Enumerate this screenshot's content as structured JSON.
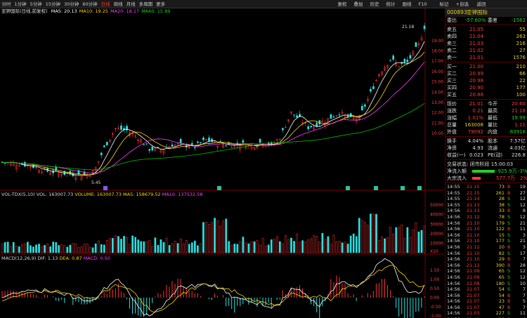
{
  "toolbar": {
    "left": [
      "分时",
      "1分钟",
      "5分钟",
      "15分钟",
      "30分钟",
      "60分钟",
      "日线",
      "周线",
      "月线",
      "多周期",
      "更多"
    ],
    "active_index": 6,
    "right": [
      "复权",
      "叠加",
      "历史",
      "统计",
      "画线",
      "F10",
      "标记",
      "+自选",
      "返回"
    ]
  },
  "main_chart": {
    "stock": "亚钾国际(日线,前复权)",
    "ma": [
      {
        "label": "MA5: 20.13",
        "color": "#ffffff"
      },
      {
        "label": "MA10: 19.25",
        "color": "#ffd700"
      },
      {
        "label": "MA20: 18.17",
        "color": "#ff40ff"
      },
      {
        "label": "MA60: 15.89",
        "color": "#00e000"
      }
    ],
    "price_ticks": [
      "19.00",
      "18.00",
      "17.00",
      "16.00",
      "15.00",
      "14.00",
      "13.00",
      "12.00",
      "11.00",
      "10.00"
    ],
    "high_label": "21.18",
    "low_label": "5.45",
    "event_markers": [
      "◆",
      "◆",
      "◆",
      "◆",
      "◆",
      "◆",
      "◆"
    ]
  },
  "vol_chart": {
    "title": "VOL-TDX(5,10)",
    "vol": "VOL: 163007.73",
    "volume": "VOLUME: 163007.73",
    "ma5": "MA5: 158679.52",
    "ma10": "MA10: 137532.58",
    "ticks": [
      "50000",
      "40000",
      "30000",
      "20000",
      "10000",
      "X10"
    ]
  },
  "macd_chart": {
    "title": "MACD(12,26,9)",
    "dif": "DIF: 1.13",
    "dea": "DEA: 0.87",
    "macd": "MACD: 0.50",
    "ticks": [
      "1.50",
      "1.00",
      "0.50",
      "0.00",
      "-0.50",
      "-1.00"
    ]
  },
  "quote": {
    "code": "000893",
    "name": "亚钾国际",
    "webi_label": "委比",
    "webi": "-57.60%",
    "weicha_label": "委差",
    "weicha": "-1562",
    "asks": [
      {
        "label": "卖五",
        "price": "21.05",
        "vol": "55"
      },
      {
        "label": "卖四",
        "price": "21.04",
        "vol": "263"
      },
      {
        "label": "卖三",
        "price": "21.03",
        "vol": "216"
      },
      {
        "label": "卖二",
        "price": "21.02",
        "vol": "27"
      },
      {
        "label": "卖一",
        "price": "21.01",
        "vol": "1576"
      }
    ],
    "bids": [
      {
        "label": "买一",
        "price": "21.00",
        "vol": "210"
      },
      {
        "label": "买二",
        "price": "20.99",
        "vol": "66"
      },
      {
        "label": "买三",
        "price": "20.98",
        "vol": "22"
      },
      {
        "label": "买四",
        "price": "20.90",
        "vol": "177"
      },
      {
        "label": "买五",
        "price": "20.88",
        "vol": "100"
      }
    ],
    "stats": [
      [
        {
          "t": "现价",
          "c": "wht"
        },
        {
          "t": "21.01",
          "c": "red"
        },
        {
          "t": "今开",
          "c": "wht"
        },
        {
          "t": "20.60",
          "c": "red"
        }
      ],
      [
        {
          "t": "涨跌",
          "c": "wht"
        },
        {
          "t": "0.21",
          "c": "red"
        },
        {
          "t": "最高",
          "c": "wht"
        },
        {
          "t": "21.18",
          "c": "red"
        }
      ],
      [
        {
          "t": "涨幅",
          "c": "wht"
        },
        {
          "t": "1.01%",
          "c": "red"
        },
        {
          "t": "最低",
          "c": "wht"
        },
        {
          "t": "19.99",
          "c": "grn"
        }
      ],
      [
        {
          "t": "总量",
          "c": "wht"
        },
        {
          "t": "163008",
          "c": "yel"
        },
        {
          "t": "量比",
          "c": "wht"
        },
        {
          "t": "1.11",
          "c": "red"
        }
      ],
      [
        {
          "t": "外盘",
          "c": "wht"
        },
        {
          "t": "79092",
          "c": "red"
        },
        {
          "t": "内盘",
          "c": "wht"
        },
        {
          "t": "83916",
          "c": "grn"
        }
      ]
    ],
    "stats2": [
      [
        {
          "t": "换手",
          "c": "wht"
        },
        {
          "t": "4.04%",
          "c": "wht"
        },
        {
          "t": "股本",
          "c": "wht"
        },
        {
          "t": "7.57亿",
          "c": "wht"
        }
      ],
      [
        {
          "t": "净资",
          "c": "wht"
        },
        {
          "t": "4.93",
          "c": "wht"
        },
        {
          "t": "流通",
          "c": "wht"
        },
        {
          "t": "4.03亿",
          "c": "wht"
        }
      ],
      [
        {
          "t": "收益(一)",
          "c": "wht"
        },
        {
          "t": "0.023",
          "c": "wht"
        },
        {
          "t": "PE(动)",
          "c": "wht"
        },
        {
          "t": "226.8",
          "c": "wht"
        }
      ]
    ],
    "trade_status": "交易状态: 闭市阶段 15:00:03",
    "netflow": {
      "label": "净流入额",
      "value": "-925.9万",
      "pct": "-3%"
    },
    "bigflow": {
      "label": "大宗流入",
      "value": "577.7万",
      "pct": "2%"
    }
  },
  "ticks_list": [
    {
      "t": "14:55",
      "p": "21.15",
      "v": "73",
      "d": "B",
      "n": "19"
    },
    {
      "t": "14:55",
      "p": "21.15",
      "v": "261",
      "d": "B",
      "n": "27"
    },
    {
      "t": "14:55",
      "p": "21.14",
      "v": "28",
      "d": "S",
      "n": "12"
    },
    {
      "t": "14:55",
      "p": "21.13",
      "v": "38",
      "d": "S",
      "n": "12"
    },
    {
      "t": "14:56",
      "p": "21.13",
      "v": "33",
      "d": "B",
      "n": "8"
    },
    {
      "t": "14:56",
      "p": "21.12",
      "v": "78",
      "d": "S",
      "n": "12"
    },
    {
      "t": "14:56",
      "p": "21.10",
      "v": "179",
      "d": "S",
      "n": "21"
    },
    {
      "t": "14:56",
      "p": "21.10",
      "v": "122",
      "d": "B",
      "n": "11"
    },
    {
      "t": "14:56",
      "p": "21.10",
      "v": "15",
      "d": "S",
      "n": "3"
    },
    {
      "t": "14:56",
      "p": "21.10",
      "v": "177",
      "d": "S",
      "n": "21"
    },
    {
      "t": "14:56",
      "p": "21.12",
      "v": "10",
      "d": "B",
      "n": "3"
    },
    {
      "t": "14:56",
      "p": "21.10",
      "v": "82",
      "d": "S",
      "n": "17"
    },
    {
      "t": "14:56",
      "p": "21.10",
      "v": "29",
      "d": "B",
      "n": "7"
    },
    {
      "t": "14:56",
      "p": "21.12",
      "v": "390",
      "d": "B",
      "n": "28"
    },
    {
      "t": "14:56",
      "p": "21.09",
      "v": "65",
      "d": "S",
      "n": "12"
    },
    {
      "t": "14:56",
      "p": "21.09",
      "v": "65",
      "d": "S",
      "n": "12"
    },
    {
      "t": "14:56",
      "p": "21.08",
      "v": "180",
      "d": "S",
      "n": "10"
    },
    {
      "t": "14:56",
      "p": "21.07",
      "v": "54",
      "d": "S",
      "n": "7"
    },
    {
      "t": "14:56",
      "p": "21.07",
      "v": "54",
      "d": "B",
      "n": "7"
    },
    {
      "t": "14:56",
      "p": "21.07",
      "v": "23",
      "d": "B",
      "n": "5"
    },
    {
      "t": "14:56",
      "p": "21.07",
      "v": "47",
      "d": "B",
      "n": "7"
    },
    {
      "t": "14:56",
      "p": "21.03",
      "v": "227",
      "d": "S",
      "n": "11"
    },
    {
      "t": "14:56",
      "p": "21.03",
      "v": "16",
      "d": "B",
      "n": "4"
    }
  ]
}
